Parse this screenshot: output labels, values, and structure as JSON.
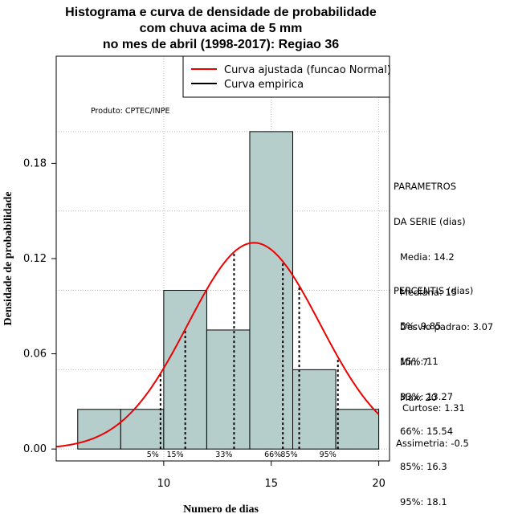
{
  "title": {
    "line1": "Histograma e curva de densidade de probabilidade",
    "line2": "com chuva acima de 5 mm",
    "line3": "no mes de abril (1998-2017): Regiao 36"
  },
  "credit": "Produto: CPTEC/INPE",
  "legend": {
    "fitted": "Curva ajustada (funcao Normal)",
    "empirical": "Curva empirica"
  },
  "colors": {
    "bar_fill": "#b5cecc",
    "fitted_curve": "#ee0000",
    "empirical_curve": "#000000",
    "grid": "#bbbbbb"
  },
  "parameters": {
    "heading1": "PARAMETROS",
    "heading2": "DA SERIE (dias)",
    "lines": [
      "Media: 14.2",
      "Mediana: 15",
      "Desvio padrao: 3.07",
      "Min: 7",
      "Max: 20"
    ]
  },
  "percentiles_panel": {
    "heading": "PERCENTIS (dias)",
    "lines": [
      "5%: 9.85",
      "15%: 11",
      "33%: 13.27",
      "66%: 15.54",
      "85%: 16.3",
      "95%: 18.1"
    ]
  },
  "shape": {
    "kurtosis": "Curtose: 1.31",
    "skewness": "Assimetria: -0.5"
  },
  "chart_data": {
    "type": "bar",
    "title": "Histograma e curva de densidade de probabilidade com chuva acima de 5 mm no mes de abril (1998-2017): Regiao 36",
    "xlabel": "Numero de dias",
    "ylabel": "Densidade de probabilidade",
    "xlim": [
      5,
      20.5
    ],
    "ylim": [
      -0.0075,
      0.2475
    ],
    "x_ticks": [
      10,
      15,
      20
    ],
    "y_ticks": [
      0.0,
      0.06,
      0.12,
      0.18
    ],
    "y_tick_labels": [
      "0.00",
      "0.06",
      "0.12",
      "0.18"
    ],
    "bins": [
      {
        "start": 6,
        "end": 8,
        "density": 0.025
      },
      {
        "start": 8,
        "end": 10,
        "density": 0.025
      },
      {
        "start": 10,
        "end": 12,
        "density": 0.1
      },
      {
        "start": 12,
        "end": 14,
        "density": 0.075
      },
      {
        "start": 14,
        "end": 16,
        "density": 0.2
      },
      {
        "start": 16,
        "end": 18,
        "density": 0.05
      },
      {
        "start": 18,
        "end": 20,
        "density": 0.025
      }
    ],
    "fitted_normal": {
      "mean": 14.2,
      "sd": 3.07
    },
    "percentiles": [
      {
        "label": "5%",
        "value": 9.85
      },
      {
        "label": "15%",
        "value": 11
      },
      {
        "label": "33%",
        "value": 13.27
      },
      {
        "label": "66%",
        "value": 15.54
      },
      {
        "label": "85%",
        "value": 16.3
      },
      {
        "label": "95%",
        "value": 18.1
      }
    ],
    "grid": true,
    "legend_position": "top-right"
  }
}
